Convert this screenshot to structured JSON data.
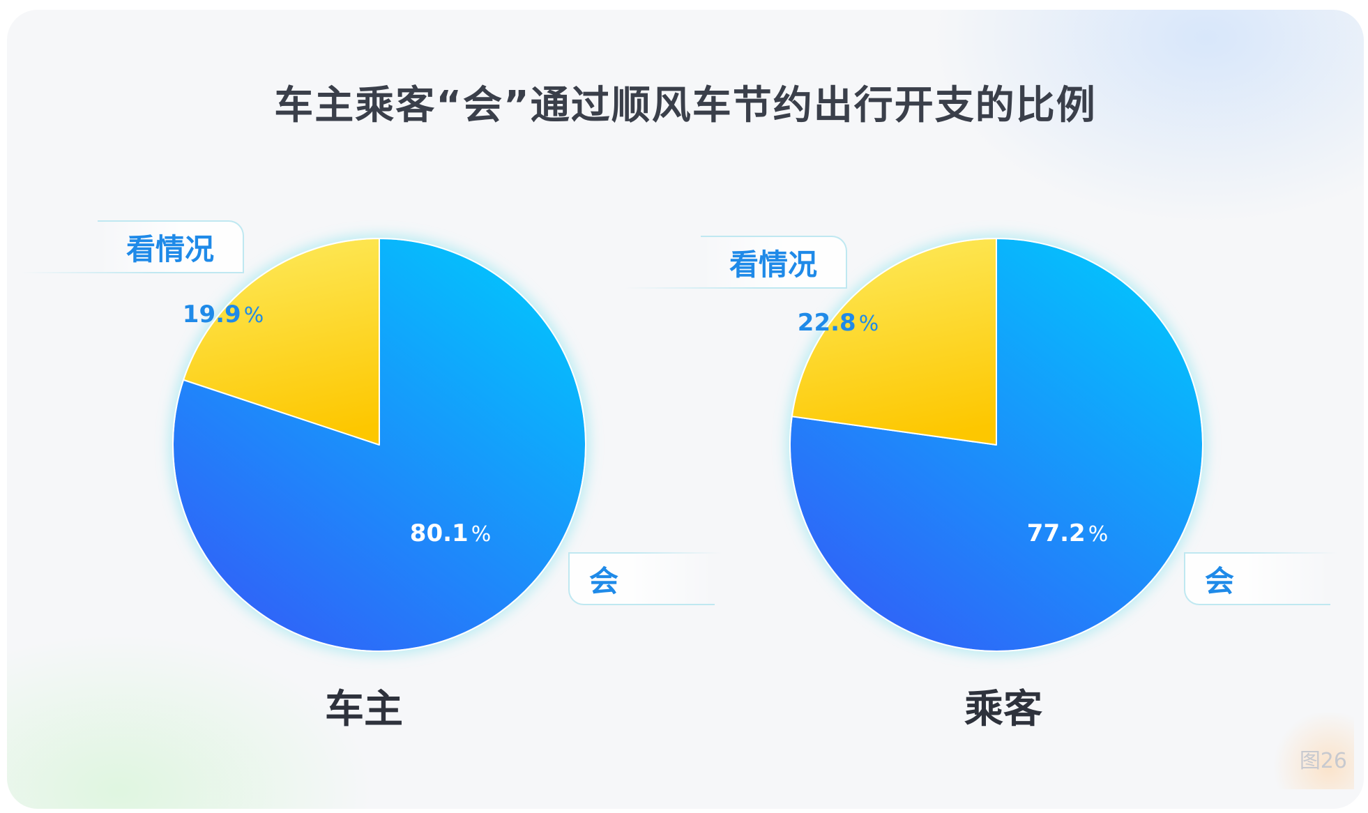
{
  "title": "车主乘客“会”通过顺风车节约出行开支的比例",
  "figure_number": "图26",
  "colors": {
    "blue_light": "#03c3fd",
    "blue_dark": "#3063f8",
    "yellow_light": "#fde95a",
    "yellow_dark": "#fdc700",
    "label_blue": "#1f8ae8",
    "title_gray": "#3a3f4a"
  },
  "chart_data": [
    {
      "type": "pie",
      "title": "车主",
      "slices": [
        {
          "label": "会",
          "value": 80.1,
          "display": "80.1",
          "unit": "%"
        },
        {
          "label": "看情况",
          "value": 19.9,
          "display": "19.9",
          "unit": "%"
        }
      ]
    },
    {
      "type": "pie",
      "title": "乘客",
      "slices": [
        {
          "label": "会",
          "value": 77.2,
          "display": "77.2",
          "unit": "%"
        },
        {
          "label": "看情况",
          "value": 22.8,
          "display": "22.8",
          "unit": "%"
        }
      ]
    }
  ]
}
